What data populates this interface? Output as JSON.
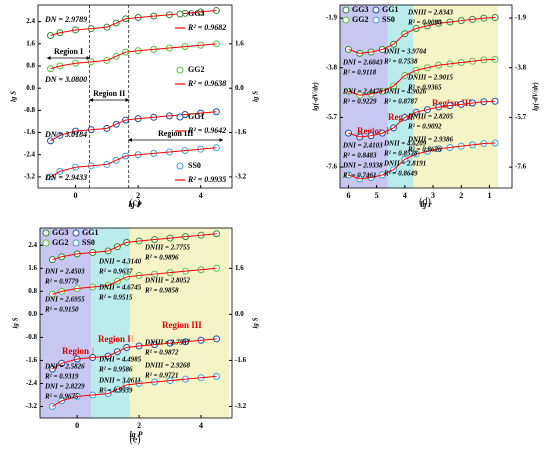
{
  "chart_data": [
    {
      "type": "scatter",
      "panel": "(c)",
      "xlabel": "lg P",
      "ylabel": "lg S",
      "xlim": [
        -1.2,
        5.0
      ],
      "xticks": [
        0,
        2,
        4
      ],
      "ylim": [
        -3.6,
        3.0
      ],
      "yticks": [
        -3.2,
        -2.4,
        -1.6,
        -0.8,
        {
          "value": 0,
          "label": "0.0"
        },
        0.8,
        1.6,
        2.4
      ],
      "y2lim": [
        -3.6,
        3.0
      ],
      "y2ticks": [
        -3.2,
        -1.6,
        {
          "value": 0,
          "label": "0.0"
        },
        1.6
      ],
      "fit_color": "#ff0000",
      "regions": [
        {
          "name": "Region I",
          "x": [
            -0.9,
            0.45
          ]
        },
        {
          "name": "Region II",
          "x": [
            0.45,
            1.7
          ]
        },
        {
          "name": "Region III",
          "x": [
            1.7,
            4.7
          ]
        }
      ],
      "series": [
        {
          "name": "GG3",
          "color": "#2e8b2e",
          "d_label": "DN = 2.9789",
          "r2_label": "R² = 0.9682",
          "x": [
            -0.8,
            -0.5,
            0,
            0.5,
            1,
            1.3,
            1.6,
            2,
            2.5,
            3,
            3.5,
            4,
            4.5
          ],
          "values": [
            1.9,
            2.0,
            2.1,
            2.15,
            2.2,
            2.35,
            2.5,
            2.55,
            2.6,
            2.65,
            2.7,
            2.75,
            2.8
          ]
        },
        {
          "name": "GG2",
          "color": "#5cbf3a",
          "d_label": "DN = 3.0800",
          "r2_label": "R² = 0.9638",
          "x": [
            -0.8,
            -0.5,
            0,
            0.5,
            1,
            1.3,
            1.6,
            2,
            2.5,
            3,
            3.5,
            4,
            4.5
          ],
          "values": [
            0.7,
            0.8,
            0.9,
            0.95,
            1.0,
            1.15,
            1.3,
            1.35,
            1.4,
            1.45,
            1.5,
            1.55,
            1.6
          ]
        },
        {
          "name": "GG1",
          "color": "#1f4fa0",
          "d_label": "DN = 3.0184",
          "r2_label": "R² = 0.9642",
          "x": [
            -0.8,
            -0.5,
            0,
            0.5,
            1,
            1.3,
            1.6,
            2,
            2.5,
            3,
            3.5,
            4,
            4.5
          ],
          "values": [
            -1.9,
            -1.7,
            -1.55,
            -1.5,
            -1.45,
            -1.3,
            -1.15,
            -1.1,
            -1.05,
            -1.0,
            -0.95,
            -0.9,
            -0.85
          ]
        },
        {
          "name": "SS0",
          "color": "#3aa0d8",
          "d_label": "DN = 2.9433",
          "r2_label": "R² = 0.9935",
          "x": [
            -0.8,
            -0.5,
            0,
            0.5,
            1,
            1.3,
            1.6,
            2,
            2.5,
            3,
            3.5,
            4,
            4.5
          ],
          "values": [
            -3.2,
            -3.0,
            -2.85,
            -2.8,
            -2.75,
            -2.6,
            -2.45,
            -2.4,
            -2.35,
            -2.3,
            -2.25,
            -2.2,
            -2.15
          ]
        }
      ]
    },
    {
      "type": "scatter",
      "panel": "(d)",
      "xlabel": "lg r",
      "ylabel": "lg(-dV/dr)",
      "xlim": [
        6.3,
        0.2
      ],
      "xticks": [
        6,
        5,
        4,
        3,
        2,
        1
      ],
      "ylim": [
        -8.4,
        -1.4
      ],
      "yticks": [
        -7.6,
        -5.7,
        -3.8,
        -1.9
      ],
      "y2lim": [
        -8.4,
        -1.4
      ],
      "y2ticks": [
        -7.6,
        -5.7,
        -3.8,
        -1.9
      ],
      "fit_color": "#ff0000",
      "regions": [
        {
          "name": "Region I",
          "x": [
            6.3,
            4.6
          ],
          "color": "#b4b4ee"
        },
        {
          "name": "Region II",
          "x": [
            4.6,
            3.7
          ],
          "color": "#a4e6e6"
        },
        {
          "name": "Region III",
          "x": [
            3.7,
            0.7
          ],
          "color": "#f0f0b4"
        }
      ],
      "series": [
        {
          "name": "GG3",
          "color": "#2e8b2e",
          "x": [
            6,
            5.6,
            5.2,
            4.8,
            4.4,
            4,
            3.6,
            3.2,
            2.8,
            2.4,
            2,
            1.6,
            1.2,
            0.8
          ],
          "values": [
            -3.1,
            -3.25,
            -3.2,
            -3.1,
            -2.9,
            -2.5,
            -2.3,
            -2.2,
            -2.1,
            -2.05,
            -2.0,
            -1.95,
            -1.9,
            -1.88
          ]
        },
        {
          "name": "GG1",
          "color": "#1f4fa0",
          "x": [
            6,
            5.6,
            5.2,
            4.8,
            4.4,
            4,
            3.6,
            3.2,
            2.8,
            2.4,
            2,
            1.6,
            1.2,
            0.8
          ],
          "values": [
            -6.3,
            -6.45,
            -6.4,
            -6.3,
            -6.1,
            -5.7,
            -5.5,
            -5.4,
            -5.3,
            -5.25,
            -5.2,
            -5.15,
            -5.1,
            -5.08
          ]
        },
        {
          "name": "GG2",
          "color": "#5cbf3a",
          "x": [
            6,
            5.6,
            5.2,
            4.8,
            4.4,
            4,
            3.6,
            3.2,
            2.8,
            2.4,
            2,
            1.6,
            1.2,
            0.8
          ],
          "values": [
            -4.7,
            -4.85,
            -4.8,
            -4.7,
            -4.5,
            -4.1,
            -3.9,
            -3.8,
            -3.7,
            -3.65,
            -3.6,
            -3.55,
            -3.5,
            -3.48
          ]
        },
        {
          "name": "SS0",
          "color": "#3aa0d8",
          "x": [
            6,
            5.6,
            5.2,
            4.8,
            4.4,
            4,
            3.6,
            3.2,
            2.8,
            2.4,
            2,
            1.6,
            1.2,
            0.8
          ],
          "values": [
            -7.9,
            -8.05,
            -8.0,
            -7.9,
            -7.7,
            -7.3,
            -7.1,
            -7.0,
            -6.9,
            -6.85,
            -6.8,
            -6.75,
            -6.7,
            -6.68
          ]
        }
      ],
      "annotations": [
        "DNIII = 2.8343",
        "R² = 0.9090",
        "DNII = 3.9704",
        "R² = 0.7538",
        "DNI = 2.6043",
        "R² = 0.9118",
        "DNIII = 2.9015",
        "R² = 0.9365",
        "DNII = 4.9026",
        "R² = 0.8787",
        "DNI = 2.4478",
        "R² = 0.9229",
        "DNIII = 2.8205",
        "R² = 0.9092",
        "DNII = 4.6209",
        "R² = 0.8578",
        "DNI = 2.4103",
        "R² = 0.8483",
        "DNIII = 2.9386",
        "R² = 0.8626",
        "DNII = 2.8191",
        "R² = 0.8649",
        "DNI = 2.9338",
        "R² = 0.7461"
      ]
    },
    {
      "type": "scatter",
      "panel": "(e)",
      "xlabel": "lg P",
      "ylabel": "lg S",
      "xlim": [
        -1.2,
        5.0
      ],
      "xticks": [
        0,
        2,
        4
      ],
      "ylim": [
        -3.6,
        3.0
      ],
      "yticks": [
        -3.2,
        -2.4,
        -1.6,
        -0.8,
        {
          "value": 0,
          "label": "0.0"
        },
        0.8,
        1.6,
        2.4
      ],
      "y2lim": [
        -3.6,
        3.0
      ],
      "y2ticks": [
        -3.2,
        -1.6,
        {
          "value": 0,
          "label": "0.0"
        },
        1.6
      ],
      "fit_color": "#ff0000",
      "regions": [
        {
          "name": "Region I",
          "x": [
            -1.2,
            0.45
          ],
          "color": "#b4b4ee"
        },
        {
          "name": "Region II",
          "x": [
            0.45,
            1.7
          ],
          "color": "#a4e6e6"
        },
        {
          "name": "Region III",
          "x": [
            1.7,
            4.9
          ],
          "color": "#f0f0b4"
        }
      ],
      "series": [
        {
          "name": "GG3",
          "color": "#2e8b2e",
          "x": [
            -0.8,
            -0.5,
            0,
            0.5,
            1,
            1.3,
            1.6,
            2,
            2.5,
            3,
            3.5,
            4,
            4.5
          ],
          "values": [
            1.9,
            2.0,
            2.1,
            2.15,
            2.2,
            2.35,
            2.5,
            2.55,
            2.6,
            2.65,
            2.7,
            2.75,
            2.8
          ]
        },
        {
          "name": "GG1",
          "color": "#1f4fa0",
          "x": [
            -0.8,
            -0.5,
            0,
            0.5,
            1,
            1.3,
            1.6,
            2,
            2.5,
            3,
            3.5,
            4,
            4.5
          ],
          "values": [
            -1.9,
            -1.7,
            -1.55,
            -1.5,
            -1.45,
            -1.3,
            -1.15,
            -1.1,
            -1.05,
            -1.0,
            -0.95,
            -0.9,
            -0.85
          ]
        },
        {
          "name": "GG2",
          "color": "#5cbf3a",
          "x": [
            -0.8,
            -0.5,
            0,
            0.5,
            1,
            1.3,
            1.6,
            2,
            2.5,
            3,
            3.5,
            4,
            4.5
          ],
          "values": [
            0.7,
            0.8,
            0.9,
            0.95,
            1.0,
            1.15,
            1.3,
            1.35,
            1.4,
            1.45,
            1.5,
            1.55,
            1.6
          ]
        },
        {
          "name": "SS0",
          "color": "#3aa0d8",
          "x": [
            -0.8,
            -0.5,
            0,
            0.5,
            1,
            1.3,
            1.6,
            2,
            2.5,
            3,
            3.5,
            4,
            4.5
          ],
          "values": [
            -3.2,
            -3.0,
            -2.85,
            -2.8,
            -2.75,
            -2.6,
            -2.45,
            -2.4,
            -2.35,
            -2.3,
            -2.25,
            -2.2,
            -2.15
          ]
        }
      ],
      "annotations": [
        "DNI = 2.4503",
        "R² = 0.9779",
        "DNII = 4.3140",
        "R² = 0.9637",
        "DNIII = 2.7755",
        "R² = 0.9896",
        "DNI = 2.6955",
        "R² = 0.9150",
        "DNII = 4.6745",
        "R² = 0.9515",
        "DNIII = 2.8052",
        "R² = 0.9858",
        "DNI = 2.5826",
        "R² = 0.9319",
        "DNII = 4.4985",
        "R² = 0.9586",
        "DNIII = 2.7597",
        "R² = 0.9872",
        "DNI = 2.8229",
        "R² = 0.9675",
        "DNII = 3.0611",
        "R² = 0.9939",
        "DNIII = 2.9268",
        "R² = 0.9721"
      ]
    }
  ]
}
